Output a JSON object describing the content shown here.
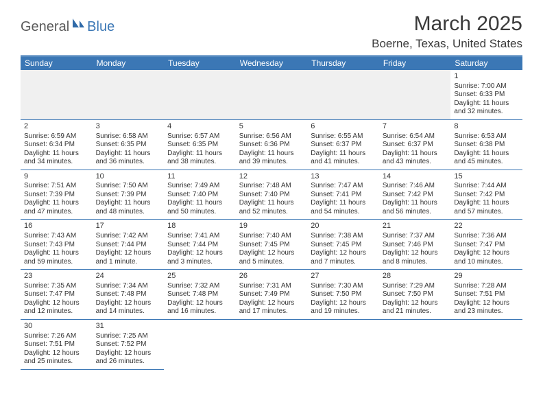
{
  "logo": {
    "part1": "General",
    "part2": "Blue"
  },
  "title": {
    "month": "March 2025",
    "location": "Boerne, Texas, United States"
  },
  "colors": {
    "brand": "#3b77b5",
    "text": "#333333",
    "muted_bg": "#f0f0f0"
  },
  "day_headers": [
    "Sunday",
    "Monday",
    "Tuesday",
    "Wednesday",
    "Thursday",
    "Friday",
    "Saturday"
  ],
  "weeks": [
    [
      null,
      null,
      null,
      null,
      null,
      null,
      {
        "n": "1",
        "sr": "Sunrise: 7:00 AM",
        "ss": "Sunset: 6:33 PM",
        "d1": "Daylight: 11 hours",
        "d2": "and 32 minutes."
      }
    ],
    [
      {
        "n": "2",
        "sr": "Sunrise: 6:59 AM",
        "ss": "Sunset: 6:34 PM",
        "d1": "Daylight: 11 hours",
        "d2": "and 34 minutes."
      },
      {
        "n": "3",
        "sr": "Sunrise: 6:58 AM",
        "ss": "Sunset: 6:35 PM",
        "d1": "Daylight: 11 hours",
        "d2": "and 36 minutes."
      },
      {
        "n": "4",
        "sr": "Sunrise: 6:57 AM",
        "ss": "Sunset: 6:35 PM",
        "d1": "Daylight: 11 hours",
        "d2": "and 38 minutes."
      },
      {
        "n": "5",
        "sr": "Sunrise: 6:56 AM",
        "ss": "Sunset: 6:36 PM",
        "d1": "Daylight: 11 hours",
        "d2": "and 39 minutes."
      },
      {
        "n": "6",
        "sr": "Sunrise: 6:55 AM",
        "ss": "Sunset: 6:37 PM",
        "d1": "Daylight: 11 hours",
        "d2": "and 41 minutes."
      },
      {
        "n": "7",
        "sr": "Sunrise: 6:54 AM",
        "ss": "Sunset: 6:37 PM",
        "d1": "Daylight: 11 hours",
        "d2": "and 43 minutes."
      },
      {
        "n": "8",
        "sr": "Sunrise: 6:53 AM",
        "ss": "Sunset: 6:38 PM",
        "d1": "Daylight: 11 hours",
        "d2": "and 45 minutes."
      }
    ],
    [
      {
        "n": "9",
        "sr": "Sunrise: 7:51 AM",
        "ss": "Sunset: 7:39 PM",
        "d1": "Daylight: 11 hours",
        "d2": "and 47 minutes."
      },
      {
        "n": "10",
        "sr": "Sunrise: 7:50 AM",
        "ss": "Sunset: 7:39 PM",
        "d1": "Daylight: 11 hours",
        "d2": "and 48 minutes."
      },
      {
        "n": "11",
        "sr": "Sunrise: 7:49 AM",
        "ss": "Sunset: 7:40 PM",
        "d1": "Daylight: 11 hours",
        "d2": "and 50 minutes."
      },
      {
        "n": "12",
        "sr": "Sunrise: 7:48 AM",
        "ss": "Sunset: 7:40 PM",
        "d1": "Daylight: 11 hours",
        "d2": "and 52 minutes."
      },
      {
        "n": "13",
        "sr": "Sunrise: 7:47 AM",
        "ss": "Sunset: 7:41 PM",
        "d1": "Daylight: 11 hours",
        "d2": "and 54 minutes."
      },
      {
        "n": "14",
        "sr": "Sunrise: 7:46 AM",
        "ss": "Sunset: 7:42 PM",
        "d1": "Daylight: 11 hours",
        "d2": "and 56 minutes."
      },
      {
        "n": "15",
        "sr": "Sunrise: 7:44 AM",
        "ss": "Sunset: 7:42 PM",
        "d1": "Daylight: 11 hours",
        "d2": "and 57 minutes."
      }
    ],
    [
      {
        "n": "16",
        "sr": "Sunrise: 7:43 AM",
        "ss": "Sunset: 7:43 PM",
        "d1": "Daylight: 11 hours",
        "d2": "and 59 minutes."
      },
      {
        "n": "17",
        "sr": "Sunrise: 7:42 AM",
        "ss": "Sunset: 7:44 PM",
        "d1": "Daylight: 12 hours",
        "d2": "and 1 minute."
      },
      {
        "n": "18",
        "sr": "Sunrise: 7:41 AM",
        "ss": "Sunset: 7:44 PM",
        "d1": "Daylight: 12 hours",
        "d2": "and 3 minutes."
      },
      {
        "n": "19",
        "sr": "Sunrise: 7:40 AM",
        "ss": "Sunset: 7:45 PM",
        "d1": "Daylight: 12 hours",
        "d2": "and 5 minutes."
      },
      {
        "n": "20",
        "sr": "Sunrise: 7:38 AM",
        "ss": "Sunset: 7:45 PM",
        "d1": "Daylight: 12 hours",
        "d2": "and 7 minutes."
      },
      {
        "n": "21",
        "sr": "Sunrise: 7:37 AM",
        "ss": "Sunset: 7:46 PM",
        "d1": "Daylight: 12 hours",
        "d2": "and 8 minutes."
      },
      {
        "n": "22",
        "sr": "Sunrise: 7:36 AM",
        "ss": "Sunset: 7:47 PM",
        "d1": "Daylight: 12 hours",
        "d2": "and 10 minutes."
      }
    ],
    [
      {
        "n": "23",
        "sr": "Sunrise: 7:35 AM",
        "ss": "Sunset: 7:47 PM",
        "d1": "Daylight: 12 hours",
        "d2": "and 12 minutes."
      },
      {
        "n": "24",
        "sr": "Sunrise: 7:34 AM",
        "ss": "Sunset: 7:48 PM",
        "d1": "Daylight: 12 hours",
        "d2": "and 14 minutes."
      },
      {
        "n": "25",
        "sr": "Sunrise: 7:32 AM",
        "ss": "Sunset: 7:48 PM",
        "d1": "Daylight: 12 hours",
        "d2": "and 16 minutes."
      },
      {
        "n": "26",
        "sr": "Sunrise: 7:31 AM",
        "ss": "Sunset: 7:49 PM",
        "d1": "Daylight: 12 hours",
        "d2": "and 17 minutes."
      },
      {
        "n": "27",
        "sr": "Sunrise: 7:30 AM",
        "ss": "Sunset: 7:50 PM",
        "d1": "Daylight: 12 hours",
        "d2": "and 19 minutes."
      },
      {
        "n": "28",
        "sr": "Sunrise: 7:29 AM",
        "ss": "Sunset: 7:50 PM",
        "d1": "Daylight: 12 hours",
        "d2": "and 21 minutes."
      },
      {
        "n": "29",
        "sr": "Sunrise: 7:28 AM",
        "ss": "Sunset: 7:51 PM",
        "d1": "Daylight: 12 hours",
        "d2": "and 23 minutes."
      }
    ],
    [
      {
        "n": "30",
        "sr": "Sunrise: 7:26 AM",
        "ss": "Sunset: 7:51 PM",
        "d1": "Daylight: 12 hours",
        "d2": "and 25 minutes."
      },
      {
        "n": "31",
        "sr": "Sunrise: 7:25 AM",
        "ss": "Sunset: 7:52 PM",
        "d1": "Daylight: 12 hours",
        "d2": "and 26 minutes."
      },
      null,
      null,
      null,
      null,
      null
    ]
  ]
}
